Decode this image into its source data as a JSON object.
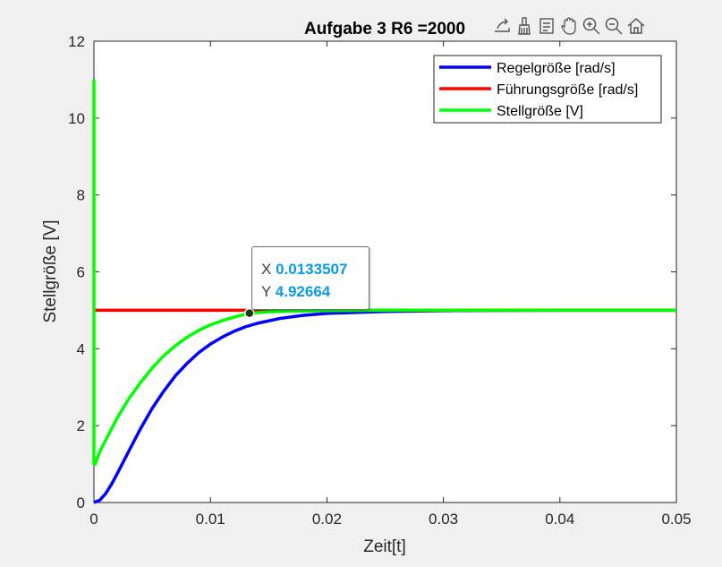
{
  "chart_data": {
    "type": "line",
    "title": "Aufgabe 3 R6 =2000",
    "xlabel": "Zeit[t]",
    "ylabel": "Stellgröße [V]",
    "xlim": [
      0,
      0.05
    ],
    "ylim": [
      0,
      12
    ],
    "xticks": [
      0,
      0.01,
      0.02,
      0.03,
      0.04,
      0.05
    ],
    "xtick_labels": [
      "0",
      "0.01",
      "0.02",
      "0.03",
      "0.04",
      "0.05"
    ],
    "yticks": [
      0,
      2,
      4,
      6,
      8,
      10,
      12
    ],
    "ytick_labels": [
      "0",
      "2",
      "4",
      "6",
      "8",
      "10",
      "12"
    ],
    "grid": false,
    "legend_position": "top-right",
    "series": [
      {
        "name": "Regelgröße [rad/s]",
        "color": "#0000ff",
        "x": [
          0,
          0.0005,
          0.001,
          0.0015,
          0.002,
          0.003,
          0.004,
          0.005,
          0.006,
          0.007,
          0.008,
          0.009,
          0.01,
          0.011,
          0.012,
          0.013,
          0.014,
          0.016,
          0.018,
          0.02,
          0.025,
          0.03,
          0.04,
          0.05
        ],
        "y": [
          0,
          0.06,
          0.23,
          0.47,
          0.75,
          1.34,
          1.92,
          2.45,
          2.9,
          3.3,
          3.62,
          3.9,
          4.12,
          4.3,
          4.45,
          4.57,
          4.66,
          4.79,
          4.87,
          4.92,
          4.97,
          4.99,
          5.0,
          5.0
        ]
      },
      {
        "name": "Führungsgröße [rad/s]",
        "color": "#ff0000",
        "x": [
          0,
          0.05
        ],
        "y": [
          5,
          5
        ]
      },
      {
        "name": "Stellgröße [V]",
        "color": "#00ff00",
        "x": [
          0,
          0,
          0.0001,
          0.0005,
          0.001,
          0.002,
          0.003,
          0.004,
          0.005,
          0.006,
          0.007,
          0.008,
          0.009,
          0.01,
          0.011,
          0.012,
          0.0133507,
          0.015,
          0.017,
          0.02,
          0.025,
          0.03,
          0.04,
          0.05
        ],
        "y": [
          11,
          1.0,
          1.0,
          1.32,
          1.62,
          2.2,
          2.7,
          3.12,
          3.5,
          3.82,
          4.08,
          4.3,
          4.48,
          4.62,
          4.73,
          4.82,
          4.92664,
          4.96,
          4.98,
          4.99,
          5.0,
          5.0,
          5.0,
          5.0
        ]
      }
    ],
    "datatip": {
      "x_label": "X",
      "x_value": "0.0133507",
      "y_label": "Y",
      "y_value": "4.92664",
      "x": 0.0133507,
      "y": 4.92664
    }
  },
  "toolbar": {
    "icons": [
      "export-icon",
      "brush-icon",
      "data-tips-icon",
      "pan-icon",
      "zoom-in-icon",
      "zoom-out-icon",
      "home-icon"
    ]
  }
}
